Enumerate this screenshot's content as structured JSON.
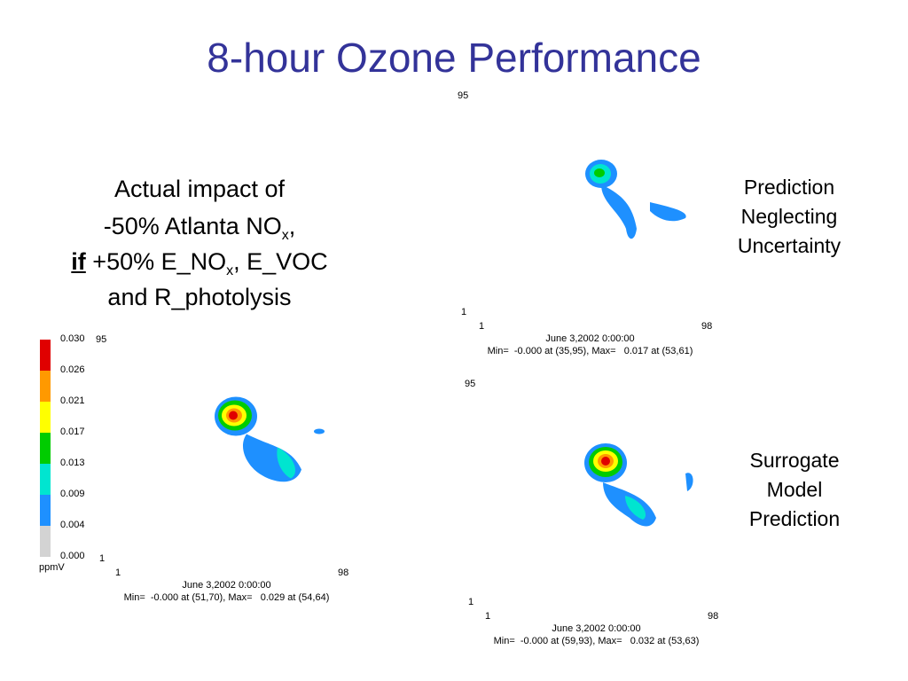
{
  "title": "8-hour Ozone Performance",
  "description": {
    "line1": "Actual impact of",
    "line2": [
      "-50% Atlanta NO",
      "x",
      ","
    ],
    "line3": [
      "if",
      " +50% E_NO",
      "x",
      ", E_VOC"
    ],
    "line4": "and R_photolysis"
  },
  "colorbar": {
    "labels": [
      "0.030",
      "0.026",
      "0.021",
      "0.017",
      "0.013",
      "0.009",
      "0.004",
      "0.000"
    ],
    "unit": "ppmV"
  },
  "maps": [
    {
      "y_top": "95",
      "y_bottom": "1",
      "x_left": "1",
      "x_right": "98",
      "date": "June 3,2002 0:00:00",
      "stats": "Min=  -0.000 at (51,70), Max=   0.029 at (54,64)"
    },
    {
      "y_top": "95",
      "y_bottom": "1",
      "x_left": "1",
      "x_right": "98",
      "date": "June 3,2002 0:00:00",
      "stats": "Min=  -0.000 at (35,95), Max=   0.017 at (53,61)",
      "caption": [
        "Prediction",
        "Neglecting",
        "Uncertainty"
      ]
    },
    {
      "y_top": "95",
      "y_bottom": "1",
      "x_left": "1",
      "x_right": "98",
      "date": "June 3,2002 0:00:00",
      "stats": "Min=  -0.000 at (59,93), Max=   0.032 at (53,63)",
      "caption": [
        "Surrogate",
        "Model",
        "Prediction"
      ]
    }
  ]
}
